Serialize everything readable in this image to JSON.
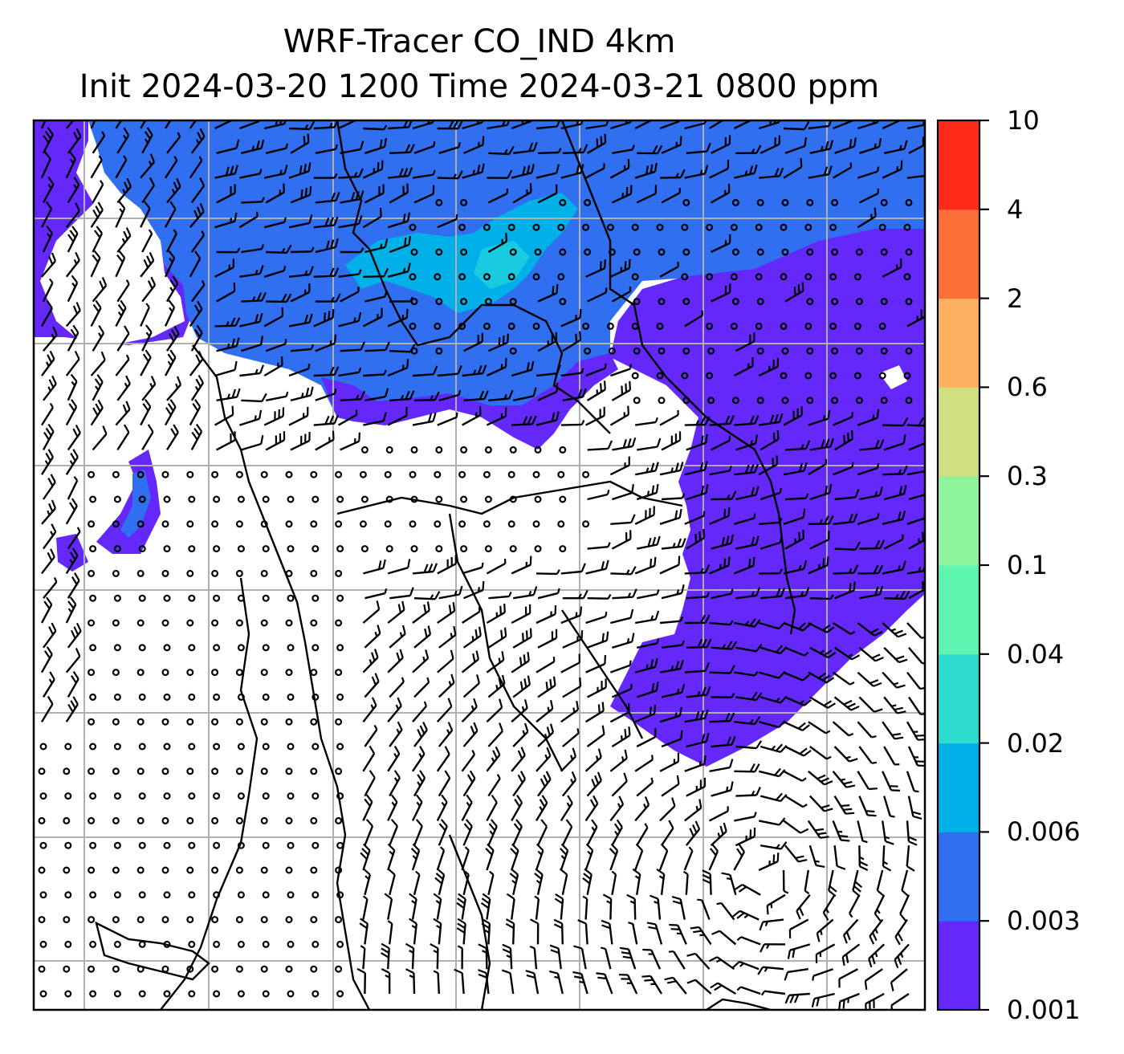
{
  "title": {
    "line1": "WRF-Tracer CO_IND 4km",
    "line2": "Init 2024-03-20 1200 Time 2024-03-21 0800 ppm"
  },
  "colorbar": {
    "levels": [
      "0.001",
      "0.003",
      "0.006",
      "0.02",
      "0.04",
      "0.1",
      "0.3",
      "0.6",
      "2",
      "4",
      "10"
    ],
    "colors": [
      "#6428fa",
      "#2f6ff0",
      "#00b0e8",
      "#2edcd0",
      "#5ef5b0",
      "#8ef59c",
      "#d0e080",
      "#feb060",
      "#ff7038",
      "#ff2a1a"
    ]
  },
  "map": {
    "fill_colors": {
      "low": "#6428fa",
      "mid": "#2f6ff0",
      "high": "#00b0e8",
      "peak": "#19cbe0"
    },
    "coastline_color": "#000000",
    "gridline_color": "#b0b0b0",
    "barb_color": "#000000"
  }
}
